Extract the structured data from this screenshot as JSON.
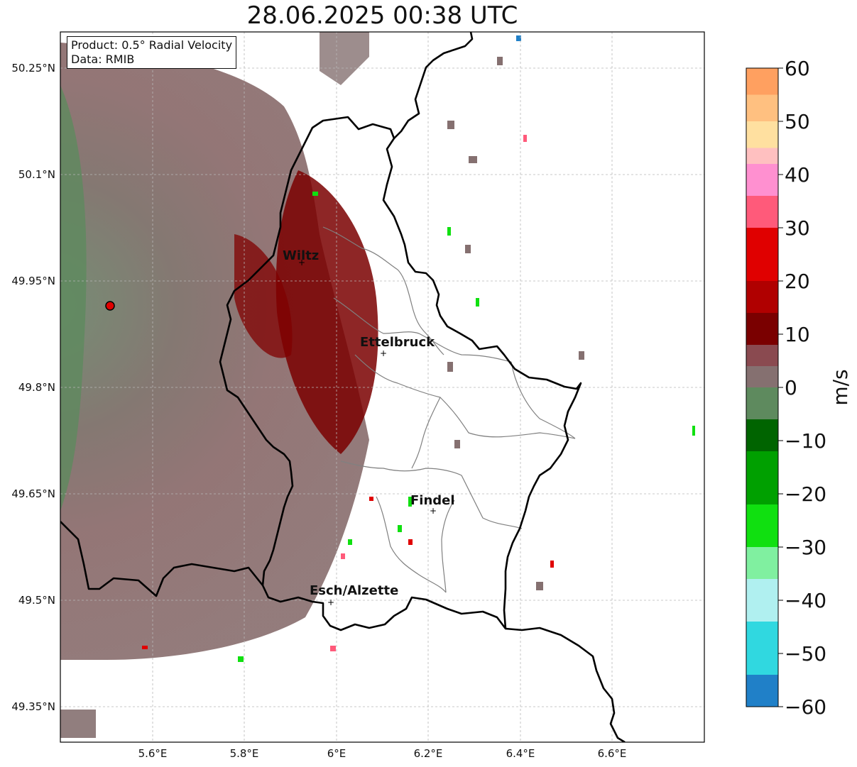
{
  "title": "28.06.2025 00:38 UTC",
  "info": {
    "product": "Product: 0.5° Radial Velocity",
    "data_source": "Data: RMIB"
  },
  "map": {
    "lon_range": [
      5.4,
      6.8
    ],
    "lat_range": [
      49.3,
      50.3
    ],
    "lon_ticks": [
      {
        "value": 5.6,
        "label": "5.6°E"
      },
      {
        "value": 5.8,
        "label": "5.8°E"
      },
      {
        "value": 6.0,
        "label": "6°E"
      },
      {
        "value": 6.2,
        "label": "6.2°E"
      },
      {
        "value": 6.4,
        "label": "6.4°E"
      },
      {
        "value": 6.6,
        "label": "6.6°E"
      }
    ],
    "lat_ticks": [
      {
        "value": 50.25,
        "label": "50.25°N"
      },
      {
        "value": 50.1,
        "label": "50.1°N"
      },
      {
        "value": 49.95,
        "label": "49.95°N"
      },
      {
        "value": 49.8,
        "label": "49.8°N"
      },
      {
        "value": 49.65,
        "label": "49.65°N"
      },
      {
        "value": 49.5,
        "label": "49.5°N"
      },
      {
        "value": 49.35,
        "label": "49.35°N"
      }
    ],
    "radar_site": {
      "lon": 5.505,
      "lat": 49.914
    },
    "cities": [
      {
        "name": "Wiltz",
        "lon": 5.935,
        "lat": 49.969
      },
      {
        "name": "Ettelbruck",
        "lon": 6.104,
        "lat": 49.848
      },
      {
        "name": "Findel",
        "lon": 6.205,
        "lat": 49.627
      },
      {
        "name": "Esch/Alzette",
        "lon": 5.981,
        "lat": 49.496
      }
    ]
  },
  "colorbar": {
    "unit": "m/s",
    "min": -60,
    "max": 60,
    "ticks": [
      {
        "value": 60,
        "label": "60"
      },
      {
        "value": 50,
        "label": "50"
      },
      {
        "value": 40,
        "label": "40"
      },
      {
        "value": 30,
        "label": "30"
      },
      {
        "value": 20,
        "label": "20"
      },
      {
        "value": 10,
        "label": "10"
      },
      {
        "value": 0,
        "label": "0"
      },
      {
        "value": -10,
        "label": "−10"
      },
      {
        "value": -20,
        "label": "−20"
      },
      {
        "value": -30,
        "label": "−30"
      },
      {
        "value": -40,
        "label": "−40"
      },
      {
        "value": -50,
        "label": "−50"
      },
      {
        "value": -60,
        "label": "−60"
      }
    ],
    "bands": [
      {
        "from": 55,
        "to": 60,
        "color": "#ffa060"
      },
      {
        "from": 50,
        "to": 55,
        "color": "#ffc080"
      },
      {
        "from": 45,
        "to": 50,
        "color": "#ffe0a0"
      },
      {
        "from": 42,
        "to": 45,
        "color": "#ffc0c0"
      },
      {
        "from": 36,
        "to": 42,
        "color": "#ff90d0"
      },
      {
        "from": 30,
        "to": 36,
        "color": "#ff5a7a"
      },
      {
        "from": 20,
        "to": 30,
        "color": "#e00000"
      },
      {
        "from": 14,
        "to": 20,
        "color": "#b00000"
      },
      {
        "from": 8,
        "to": 14,
        "color": "#7a0000"
      },
      {
        "from": 4,
        "to": 8,
        "color": "#8a4a50"
      },
      {
        "from": 0,
        "to": 4,
        "color": "#857070"
      },
      {
        "from": -6,
        "to": 0,
        "color": "#5e8a5e"
      },
      {
        "from": -12,
        "to": -6,
        "color": "#006400"
      },
      {
        "from": -22,
        "to": -12,
        "color": "#00a000"
      },
      {
        "from": -30,
        "to": -22,
        "color": "#10e010"
      },
      {
        "from": -36,
        "to": -30,
        "color": "#80f0a0"
      },
      {
        "from": -44,
        "to": -36,
        "color": "#b0f0f0"
      },
      {
        "from": -54,
        "to": -44,
        "color": "#30d8e0"
      },
      {
        "from": -60,
        "to": -54,
        "color": "#2080c8"
      }
    ]
  }
}
